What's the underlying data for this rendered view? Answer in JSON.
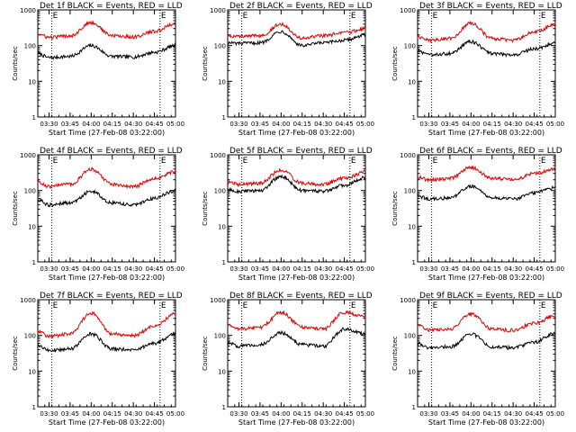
{
  "colors": {
    "events": "#000000",
    "lld": "#e00000",
    "background": "#ffffff"
  },
  "time_axis": {
    "start": "03:22",
    "end": "05:00",
    "ticks": [
      "03:30",
      "03:45",
      "04:00",
      "04:15",
      "04:30",
      "04:45",
      "05:00"
    ]
  },
  "y_axis": {
    "scale": "log",
    "range": [
      1,
      1000
    ],
    "tick_labels": [
      "1",
      "10",
      "100",
      "1000"
    ]
  },
  "chart_data": [
    {
      "type": "line",
      "title": "Det 1f BLACK = Events, RED = LLD",
      "xlabel": "Start Time (27-Feb-08 03:22:00)",
      "ylabel": "Counts/sec",
      "markers": [
        {
          "time": "03:32",
          "label": "E"
        },
        {
          "time": "04:49",
          "label": "E"
        }
      ],
      "series": [
        {
          "name": "Events",
          "x": [
            "03:22",
            "03:30",
            "03:45",
            "04:00",
            "04:15",
            "04:30",
            "04:45",
            "05:00"
          ],
          "values": [
            60,
            46,
            50,
            100,
            50,
            48,
            65,
            100
          ]
        },
        {
          "name": "LLD",
          "x": [
            "03:22",
            "03:30",
            "03:45",
            "04:00",
            "04:15",
            "04:30",
            "04:45",
            "05:00"
          ],
          "values": [
            210,
            170,
            190,
            440,
            190,
            175,
            250,
            420
          ]
        }
      ]
    },
    {
      "type": "line",
      "title": "Det 2f BLACK = Events, RED = LLD",
      "xlabel": "Start Time (27-Feb-08 03:22:00)",
      "ylabel": "Counts/sec",
      "markers": [
        {
          "time": "03:32",
          "label": "E"
        },
        {
          "time": "04:49",
          "label": "E"
        }
      ],
      "series": [
        {
          "name": "Events",
          "x": [
            "03:22",
            "03:30",
            "03:45",
            "04:00",
            "04:15",
            "04:30",
            "04:45",
            "05:00"
          ],
          "values": [
            120,
            115,
            120,
            250,
            100,
            120,
            140,
            200
          ]
        },
        {
          "name": "LLD",
          "x": [
            "03:22",
            "03:30",
            "03:45",
            "04:00",
            "04:15",
            "04:30",
            "04:45",
            "05:00"
          ],
          "values": [
            190,
            180,
            190,
            400,
            160,
            190,
            230,
            300
          ]
        }
      ]
    },
    {
      "type": "line",
      "title": "Det 3f BLACK = Events, RED = LLD",
      "xlabel": "Start Time (27-Feb-08 03:22:00)",
      "ylabel": "Counts/sec",
      "markers": [
        {
          "time": "03:32",
          "label": "E"
        },
        {
          "time": "04:49",
          "label": "E"
        }
      ],
      "series": [
        {
          "name": "Events",
          "x": [
            "03:22",
            "03:30",
            "03:45",
            "04:00",
            "04:15",
            "04:30",
            "04:45",
            "05:00"
          ],
          "values": [
            70,
            55,
            60,
            130,
            60,
            55,
            80,
            120
          ]
        },
        {
          "name": "LLD",
          "x": [
            "03:22",
            "03:30",
            "03:45",
            "04:00",
            "04:15",
            "04:30",
            "04:45",
            "05:00"
          ],
          "values": [
            180,
            140,
            160,
            430,
            160,
            140,
            240,
            380
          ]
        }
      ]
    },
    {
      "type": "line",
      "title": "Det 4f BLACK = Events, RED = LLD",
      "xlabel": "Start Time (27-Feb-08 03:22:00)",
      "ylabel": "Counts/sec",
      "markers": [
        {
          "time": "03:32",
          "label": "E"
        },
        {
          "time": "04:49",
          "label": "E"
        }
      ],
      "series": [
        {
          "name": "Events",
          "x": [
            "03:22",
            "03:30",
            "03:45",
            "04:00",
            "04:15",
            "04:30",
            "04:45",
            "05:00"
          ],
          "values": [
            55,
            40,
            45,
            95,
            45,
            40,
            60,
            100
          ]
        },
        {
          "name": "LLD",
          "x": [
            "03:22",
            "03:30",
            "03:45",
            "04:00",
            "04:15",
            "04:30",
            "04:45",
            "05:00"
          ],
          "values": [
            170,
            130,
            150,
            400,
            150,
            130,
            220,
            340
          ]
        }
      ]
    },
    {
      "type": "line",
      "title": "Det 5f BLACK = Events, RED = LLD",
      "xlabel": "Start Time (27-Feb-08 03:22:00)",
      "ylabel": "Counts/sec",
      "markers": [
        {
          "time": "03:32",
          "label": "E"
        },
        {
          "time": "04:49",
          "label": "E"
        }
      ],
      "series": [
        {
          "name": "Events",
          "x": [
            "03:22",
            "03:30",
            "03:45",
            "04:00",
            "04:15",
            "04:30",
            "04:45",
            "05:00"
          ],
          "values": [
            105,
            95,
            100,
            250,
            100,
            95,
            140,
            230
          ]
        },
        {
          "name": "LLD",
          "x": [
            "03:22",
            "03:30",
            "03:45",
            "04:00",
            "04:15",
            "04:30",
            "04:45",
            "05:00"
          ],
          "values": [
            170,
            150,
            160,
            380,
            160,
            150,
            220,
            330
          ]
        }
      ]
    },
    {
      "type": "line",
      "title": "Det 6f BLACK = Events, RED = LLD",
      "xlabel": "Start Time (27-Feb-08 03:22:00)",
      "ylabel": "Counts/sec",
      "markers": [
        {
          "time": "03:32",
          "label": "E"
        },
        {
          "time": "04:49",
          "label": "E"
        }
      ],
      "series": [
        {
          "name": "Events",
          "x": [
            "03:22",
            "03:30",
            "03:45",
            "04:00",
            "04:15",
            "04:30",
            "04:45",
            "05:00"
          ],
          "values": [
            70,
            58,
            62,
            130,
            62,
            58,
            85,
            125
          ]
        },
        {
          "name": "LLD",
          "x": [
            "03:22",
            "03:30",
            "03:45",
            "04:00",
            "04:15",
            "04:30",
            "04:45",
            "05:00"
          ],
          "values": [
            240,
            200,
            220,
            450,
            220,
            200,
            300,
            400
          ]
        }
      ]
    },
    {
      "type": "line",
      "title": "Det 7f BLACK = Events, RED = LLD",
      "xlabel": "Start Time (27-Feb-08 03:22:00)",
      "ylabel": "Counts/sec",
      "markers": [
        {
          "time": "03:32",
          "label": "E"
        },
        {
          "time": "04:49",
          "label": "E"
        }
      ],
      "series": [
        {
          "name": "Events",
          "x": [
            "03:22",
            "03:30",
            "03:45",
            "04:00",
            "04:15",
            "04:30",
            "04:45",
            "05:00"
          ],
          "values": [
            50,
            38,
            42,
            110,
            42,
            40,
            60,
            110
          ]
        },
        {
          "name": "LLD",
          "x": [
            "03:22",
            "03:30",
            "03:45",
            "04:00",
            "04:15",
            "04:30",
            "04:45",
            "05:00"
          ],
          "values": [
            130,
            95,
            110,
            420,
            110,
            100,
            180,
            400
          ]
        }
      ]
    },
    {
      "type": "line",
      "title": "Det 8f BLACK = Events, RED = LLD",
      "xlabel": "Start Time (27-Feb-08 03:22:00)",
      "ylabel": "Counts/sec",
      "markers": [
        {
          "time": "03:32",
          "label": "E"
        },
        {
          "time": "04:49",
          "label": "E"
        }
      ],
      "series": [
        {
          "name": "Events",
          "x": [
            "03:22",
            "03:30",
            "03:45",
            "04:00",
            "04:15",
            "04:30",
            "04:45",
            "05:00"
          ],
          "values": [
            65,
            50,
            55,
            120,
            55,
            50,
            150,
            110
          ]
        },
        {
          "name": "LLD",
          "x": [
            "03:22",
            "03:30",
            "03:45",
            "04:00",
            "04:15",
            "04:30",
            "04:45",
            "05:00"
          ],
          "values": [
            200,
            150,
            170,
            440,
            170,
            150,
            450,
            330
          ]
        }
      ]
    },
    {
      "type": "line",
      "title": "Det 9f BLACK = Events, RED = LLD",
      "xlabel": "Start Time (27-Feb-08 03:22:00)",
      "ylabel": "Counts/sec",
      "markers": [
        {
          "time": "03:32",
          "label": "E"
        },
        {
          "time": "04:49",
          "label": "E"
        }
      ],
      "series": [
        {
          "name": "Events",
          "x": [
            "03:22",
            "03:30",
            "03:45",
            "04:00",
            "04:15",
            "04:30",
            "04:45",
            "05:00"
          ],
          "values": [
            60,
            45,
            48,
            110,
            48,
            45,
            65,
            115
          ]
        },
        {
          "name": "LLD",
          "x": [
            "03:22",
            "03:30",
            "03:45",
            "04:00",
            "04:15",
            "04:30",
            "04:45",
            "05:00"
          ],
          "values": [
            190,
            140,
            150,
            400,
            150,
            140,
            220,
            360
          ]
        }
      ]
    }
  ]
}
